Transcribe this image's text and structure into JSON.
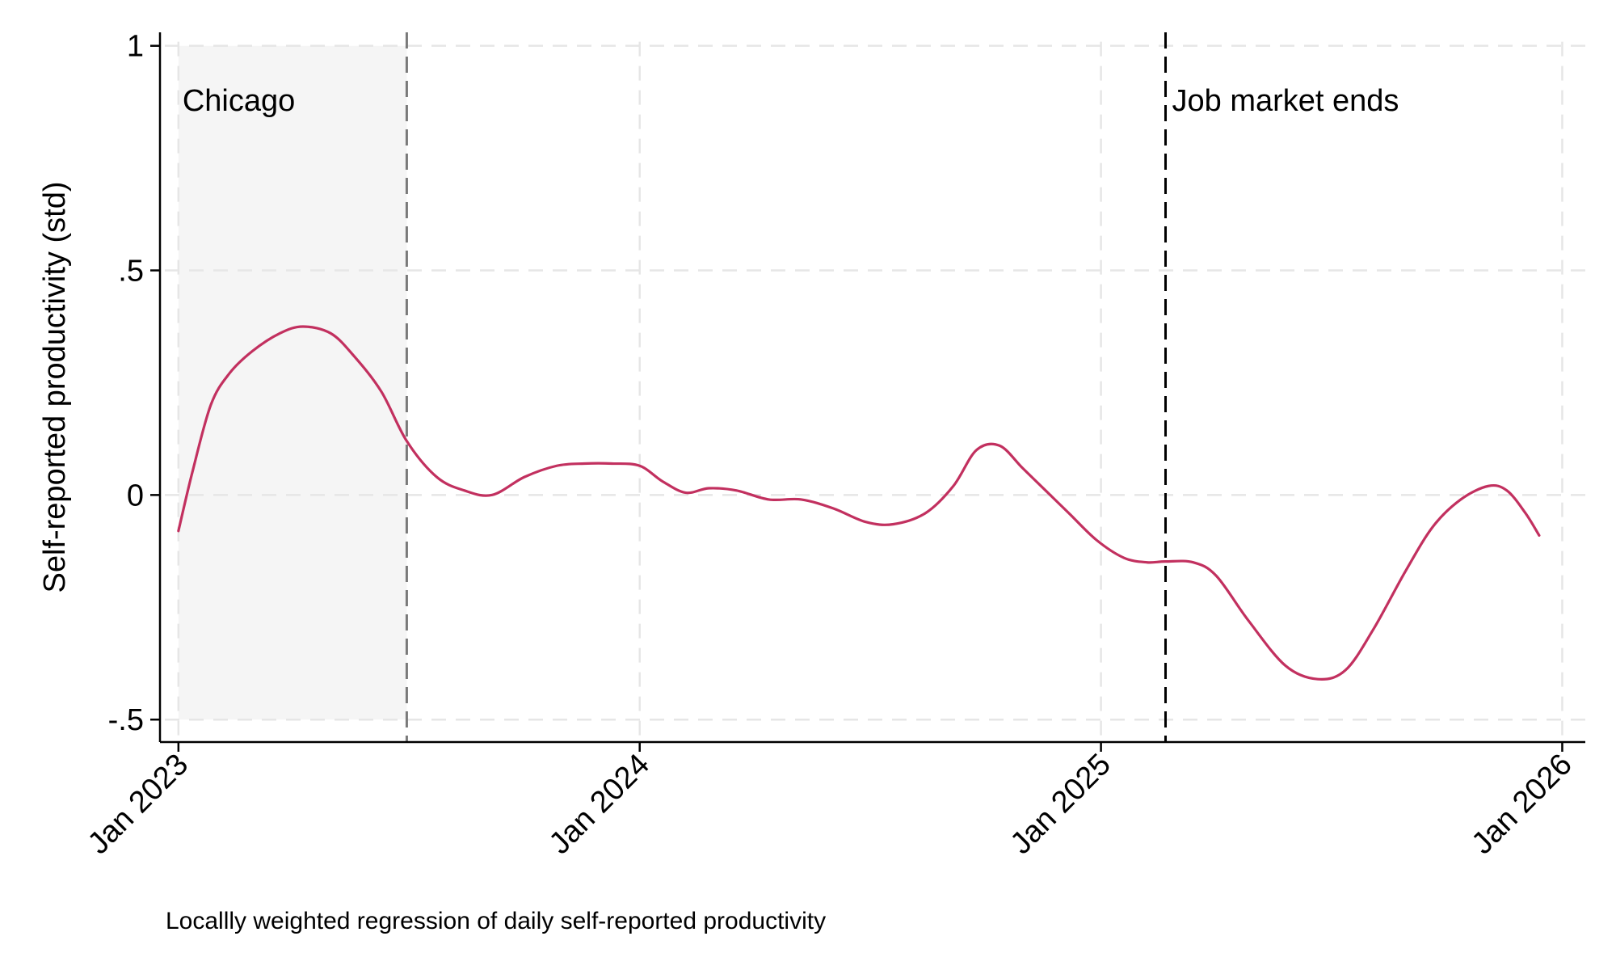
{
  "chart_data": {
    "type": "line",
    "title": "",
    "xlabel": "",
    "ylabel": "Self-reported productivity (std)",
    "note": "Locallly weighted regression of daily self-reported productivity",
    "x_unit": "years since Jan 2023",
    "xlim": [
      -0.04,
      3.05
    ],
    "ylim": [
      -0.55,
      1.03
    ],
    "x_ticks": [
      {
        "value": 0,
        "label": "Jan 2023"
      },
      {
        "value": 1,
        "label": "Jan 2024"
      },
      {
        "value": 2,
        "label": "Jan 2025"
      },
      {
        "value": 3,
        "label": "Jan 2026"
      }
    ],
    "y_ticks": [
      {
        "value": 1,
        "label": "1"
      },
      {
        "value": 0.5,
        "label": ".5"
      },
      {
        "value": 0,
        "label": "0"
      },
      {
        "value": -0.5,
        "label": "-.5"
      }
    ],
    "grid": true,
    "shaded_region": {
      "x_start": 0,
      "x_end": 0.495,
      "label": "Chicago",
      "color": "#f5f5f5"
    },
    "vlines": [
      {
        "x": 0.495,
        "color": "#7a7a7a",
        "label": ""
      },
      {
        "x": 2.14,
        "color": "#000000",
        "label": "Job market ends"
      }
    ],
    "series": [
      {
        "name": "Self-reported productivity",
        "color": "#c2305f",
        "x": [
          0,
          0.03,
          0.07,
          0.11,
          0.16,
          0.22,
          0.27,
          0.33,
          0.38,
          0.44,
          0.495,
          0.56,
          0.62,
          0.68,
          0.75,
          0.82,
          0.88,
          0.94,
          1.0,
          1.05,
          1.1,
          1.15,
          1.21,
          1.28,
          1.35,
          1.42,
          1.49,
          1.55,
          1.62,
          1.68,
          1.73,
          1.78,
          1.83,
          1.88,
          1.93,
          1.99,
          2.05,
          2.1,
          2.14,
          2.2,
          2.25,
          2.32,
          2.4,
          2.47,
          2.53,
          2.59,
          2.66,
          2.72,
          2.78,
          2.84,
          2.88,
          2.92,
          2.95
        ],
        "values": [
          -0.08,
          0.05,
          0.2,
          0.27,
          0.32,
          0.36,
          0.375,
          0.36,
          0.31,
          0.23,
          0.12,
          0.04,
          0.01,
          0.0,
          0.04,
          0.065,
          0.07,
          0.07,
          0.065,
          0.03,
          0.005,
          0.015,
          0.01,
          -0.01,
          -0.01,
          -0.03,
          -0.06,
          -0.065,
          -0.04,
          0.02,
          0.1,
          0.11,
          0.06,
          0.01,
          -0.04,
          -0.1,
          -0.14,
          -0.15,
          -0.148,
          -0.15,
          -0.18,
          -0.28,
          -0.38,
          -0.41,
          -0.39,
          -0.3,
          -0.17,
          -0.07,
          -0.01,
          0.02,
          0.01,
          -0.04,
          -0.09
        ]
      }
    ]
  }
}
